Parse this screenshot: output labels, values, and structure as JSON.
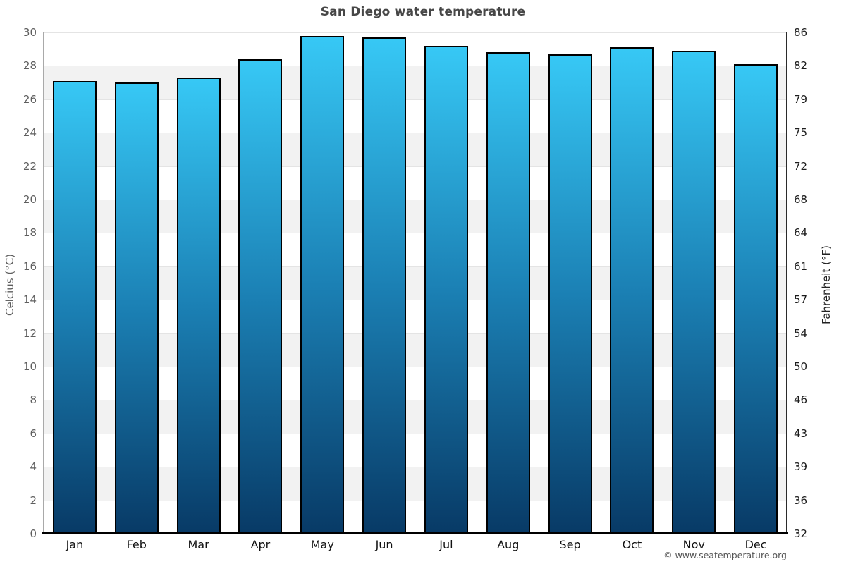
{
  "title": "San Diego water temperature",
  "copyright": "© www.seatemperature.org",
  "chart_data": {
    "type": "bar",
    "title": "San Diego water temperature",
    "xlabel": "",
    "ylabel_left": "Celcius (°C)",
    "ylabel_right": "Fahrenheit (°F)",
    "categories": [
      "Jan",
      "Feb",
      "Mar",
      "Apr",
      "May",
      "Jun",
      "Jul",
      "Aug",
      "Sep",
      "Oct",
      "Nov",
      "Dec"
    ],
    "values": [
      27.1,
      27.0,
      27.3,
      28.4,
      29.8,
      29.7,
      29.2,
      28.8,
      28.7,
      29.1,
      28.9,
      28.1
    ],
    "unit": "°C",
    "ylim": [
      0,
      30
    ],
    "celsius_ticks": [
      30,
      28,
      26,
      24,
      22,
      20,
      18,
      16,
      14,
      12,
      10,
      8,
      6,
      4,
      2,
      0
    ],
    "fahrenheit_tick_labels": [
      "86",
      "82",
      "79",
      "75",
      "72",
      "68",
      "64",
      "61",
      "57",
      "54",
      "50",
      "46",
      "43",
      "39",
      "36",
      "32"
    ],
    "legend": "none",
    "grid": "horizontal alternating bands every 2°C",
    "colors": {
      "bar_gradient_top": "#37c8f5",
      "bar_gradient_mid": "#1b80b4",
      "bar_gradient_bottom": "#083a66",
      "bar_border": "#000000",
      "band_gray": "#f2f2f2",
      "band_white": "#ffffff",
      "gridline": "#e4e4e4",
      "title_text": "#474747",
      "left_tick_text": "#5e5e5e",
      "right_tick_text": "#1c1c1c",
      "month_text": "#111111",
      "axis_left_line": "#a9a9a9",
      "axis_right_line": "#2b2b2b",
      "axis_bottom_line": "#000000"
    }
  }
}
